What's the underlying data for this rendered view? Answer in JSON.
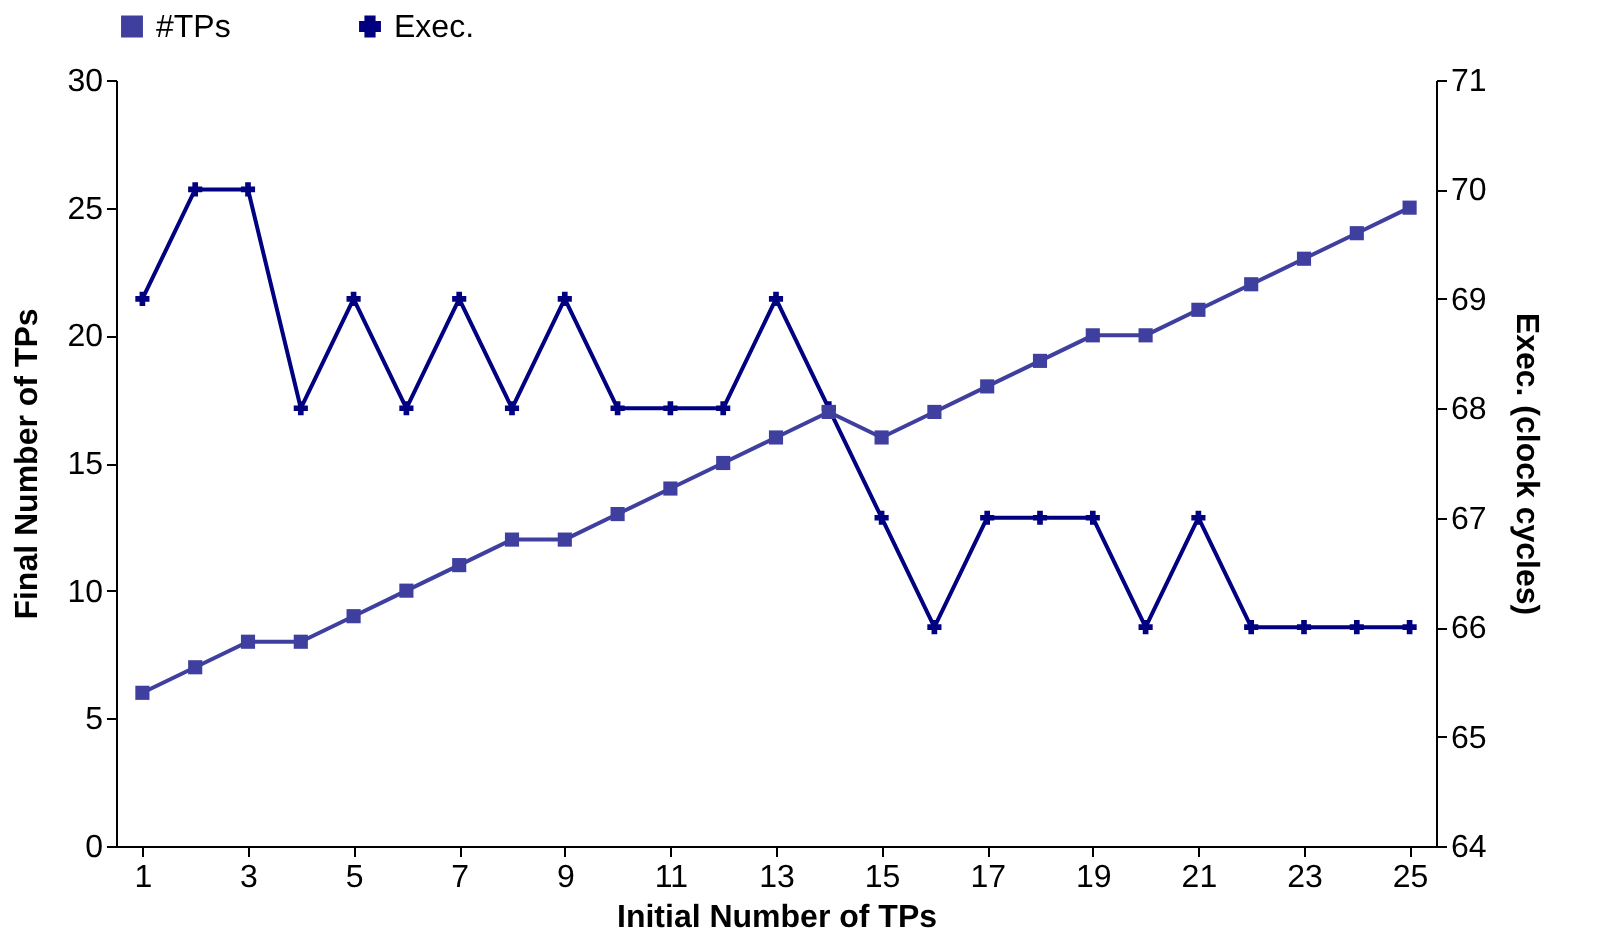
{
  "chart_data": {
    "type": "line",
    "xlabel": "Initial Number of TPs",
    "ylabel": "Final Number of TPs",
    "y2label": "Exec. (clock cycles)",
    "x": [
      1,
      2,
      3,
      4,
      5,
      6,
      7,
      8,
      9,
      10,
      11,
      12,
      13,
      14,
      15,
      16,
      17,
      18,
      19,
      20,
      21,
      22,
      23,
      24,
      25
    ],
    "xlim": [
      0.5,
      25.5
    ],
    "xticks": [
      1,
      3,
      5,
      7,
      9,
      11,
      13,
      15,
      17,
      19,
      21,
      23,
      25
    ],
    "ylim": [
      0,
      30
    ],
    "yticks": [
      0,
      5,
      10,
      15,
      20,
      25,
      30
    ],
    "y2lim": [
      64,
      71
    ],
    "y2ticks": [
      64,
      65,
      66,
      67,
      68,
      69,
      70,
      71
    ],
    "grid": false,
    "legend": "top",
    "line_style": "solid",
    "series": [
      {
        "name": "#TPs",
        "color": "#3f3f9f",
        "marker": "square",
        "values": [
          6,
          7,
          8,
          8,
          9,
          10,
          11,
          12,
          12,
          13,
          14,
          15,
          16,
          17,
          16,
          17,
          18,
          19,
          20,
          20,
          21,
          22,
          23,
          24,
          25
        ]
      },
      {
        "name": "Exec.",
        "color": "#000080",
        "marker": "cross",
        "axis": "y2",
        "values": [
          69,
          70,
          70,
          68,
          69,
          68,
          69,
          68,
          69,
          68,
          68,
          68,
          69,
          68,
          67,
          66,
          67,
          67,
          67,
          66,
          67,
          66,
          66,
          66,
          66
        ]
      }
    ]
  }
}
